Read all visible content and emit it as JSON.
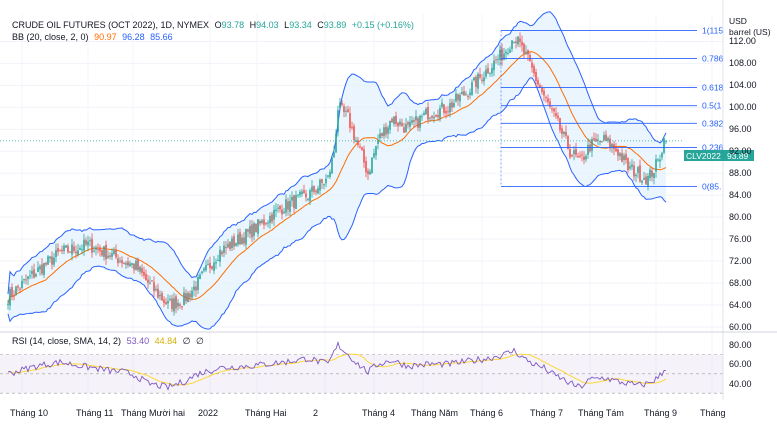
{
  "legend": {
    "symbol": "CRUDE OIL FUTURES (OCT 2022), 1D, NYMEX",
    "o_label": "O",
    "o_value": "93.78",
    "h_label": "H",
    "h_value": "94.03",
    "l_label": "L",
    "l_value": "93.34",
    "c_label": "C",
    "c_value": "93.89",
    "change": "+0.15 (+0.16%)",
    "bb_label": "BB (20, close, 2, 0)",
    "bb_basis": "90.97",
    "bb_upper": "96.28",
    "bb_lower": "85.66"
  },
  "rsi_legend": {
    "label": "RSI (14, close, SMA, 14, 2)",
    "rsi": "53.40",
    "rsi_sma": "44.84",
    "empty1": "∅",
    "empty2": "∅"
  },
  "price_label": {
    "ticker": "CLV2022",
    "value": "93.89"
  },
  "axis_unit": {
    "line1": "USD",
    "line2": "barrel (US)"
  },
  "colors": {
    "up": "#26a69a",
    "down": "#ef5350",
    "bb_band": "#2962ff",
    "bb_basis": "#ff6d00",
    "fill": "#e3f2fd",
    "rsi": "#7e57c2",
    "rsi_sma": "#fdd835",
    "fib": "#2962ff"
  },
  "chart_data": {
    "type": "candlestick",
    "x_ticks": [
      "Tháng 10",
      "Tháng 11",
      "Tháng Mười hai",
      "2022",
      "Tháng Hai",
      "2",
      "Tháng 4",
      "Tháng Năm",
      "Tháng 6",
      "Tháng 7",
      "Tháng Tám",
      "Tháng 9",
      "Tháng"
    ],
    "y_ticks": [
      "112.00",
      "108.00",
      "104.00",
      "100.00",
      "96.00",
      "92.00",
      "88.00",
      "84.00",
      "80.00",
      "76.00",
      "72.00",
      "68.00",
      "64.00",
      "60.00"
    ],
    "ylim": [
      60,
      117
    ],
    "rsi_ticks": [
      "80.00",
      "60.00",
      "40.00"
    ],
    "fib_levels": [
      {
        "label": "1(115",
        "price": 114.0
      },
      {
        "label": "0.786",
        "price": 108.9
      },
      {
        "label": "0.618",
        "price": 103.6
      },
      {
        "label": "0.5(1",
        "price": 100.3
      },
      {
        "label": "0.382",
        "price": 97.1
      },
      {
        "label": "0.236",
        "price": 92.7
      },
      {
        "label": "0(85.",
        "price": 85.6
      }
    ],
    "close_anchors": [
      [
        0,
        65.5
      ],
      [
        14,
        70
      ],
      [
        26,
        73.5
      ],
      [
        40,
        75
      ],
      [
        52,
        73
      ],
      [
        58,
        72
      ],
      [
        64,
        71
      ],
      [
        70,
        68
      ],
      [
        80,
        64
      ],
      [
        88,
        65
      ],
      [
        95,
        68
      ],
      [
        105,
        73.5
      ],
      [
        120,
        77
      ],
      [
        138,
        82
      ],
      [
        150,
        84
      ],
      [
        160,
        87
      ],
      [
        163,
        92
      ],
      [
        165,
        100
      ],
      [
        170,
        98
      ],
      [
        175,
        93
      ],
      [
        180,
        88
      ],
      [
        185,
        94
      ],
      [
        192,
        98
      ],
      [
        200,
        96
      ],
      [
        210,
        99
      ],
      [
        220,
        100
      ],
      [
        230,
        103
      ],
      [
        240,
        107
      ],
      [
        248,
        110
      ],
      [
        253,
        113
      ],
      [
        258,
        110
      ],
      [
        263,
        106
      ],
      [
        268,
        102
      ],
      [
        272,
        99
      ],
      [
        276,
        96
      ],
      [
        281,
        92
      ],
      [
        286,
        90
      ],
      [
        291,
        93
      ],
      [
        298,
        94
      ],
      [
        305,
        92
      ],
      [
        310,
        89
      ],
      [
        315,
        88
      ],
      [
        320,
        87
      ],
      [
        325,
        90
      ],
      [
        328,
        94
      ]
    ],
    "rsi_anchors": [
      [
        0,
        50
      ],
      [
        14,
        58
      ],
      [
        26,
        62
      ],
      [
        40,
        57
      ],
      [
        52,
        53
      ],
      [
        58,
        52
      ],
      [
        64,
        48
      ],
      [
        70,
        40
      ],
      [
        80,
        36
      ],
      [
        88,
        42
      ],
      [
        95,
        50
      ],
      [
        105,
        56
      ],
      [
        120,
        58
      ],
      [
        138,
        62
      ],
      [
        150,
        66
      ],
      [
        160,
        60
      ],
      [
        163,
        72
      ],
      [
        165,
        80
      ],
      [
        170,
        70
      ],
      [
        175,
        60
      ],
      [
        180,
        52
      ],
      [
        185,
        60
      ],
      [
        192,
        64
      ],
      [
        200,
        58
      ],
      [
        210,
        60
      ],
      [
        220,
        60
      ],
      [
        230,
        63
      ],
      [
        240,
        66
      ],
      [
        248,
        70
      ],
      [
        253,
        74
      ],
      [
        258,
        66
      ],
      [
        263,
        60
      ],
      [
        268,
        56
      ],
      [
        272,
        50
      ],
      [
        276,
        46
      ],
      [
        281,
        40
      ],
      [
        286,
        36
      ],
      [
        291,
        44
      ],
      [
        298,
        46
      ],
      [
        305,
        42
      ],
      [
        310,
        40
      ],
      [
        315,
        38
      ],
      [
        320,
        40
      ],
      [
        325,
        46
      ],
      [
        328,
        53
      ]
    ],
    "last": {
      "open": 93.78,
      "high": 94.03,
      "low": 93.34,
      "close": 93.89
    },
    "bollinger": {
      "basis": 90.97,
      "upper": 96.28,
      "lower": 85.66
    },
    "rsi_last": 53.4,
    "rsi_sma_last": 44.84
  }
}
